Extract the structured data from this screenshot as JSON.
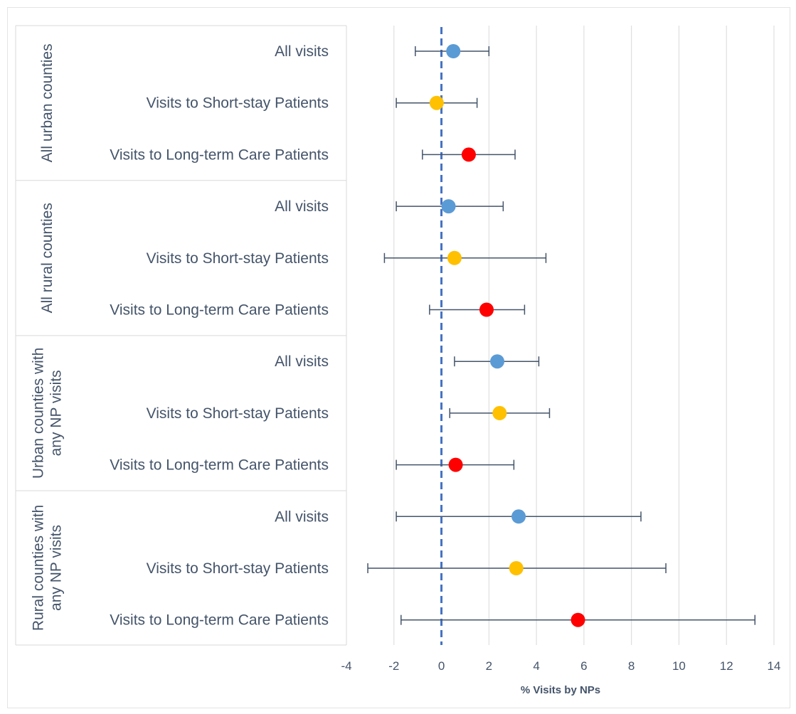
{
  "chart_data": {
    "type": "scatter",
    "subtype": "forest-plot",
    "title": "",
    "xlabel": "% Visits by NPs",
    "ylabel": "",
    "xlim": [
      -4,
      14
    ],
    "x_ticks": [
      -4,
      -2,
      0,
      2,
      4,
      6,
      8,
      10,
      12,
      14
    ],
    "x_tick_labels": [
      "-4",
      "-2",
      "0",
      "2",
      "4",
      "6",
      "8",
      "10",
      "12",
      "14"
    ],
    "grid": "vertical",
    "reference_line": {
      "x": 0,
      "style": "dashed",
      "color": "#4472c4"
    },
    "colors": {
      "All visits": "#5b9bd5",
      "Visits to Short-stay Patients": "#ffc000",
      "Visits to Long-term Care Patients": "#ff0000",
      "error_bar": "#44546a",
      "text": "#44546a"
    },
    "groups": [
      {
        "name_lines": [
          "All urban counties"
        ],
        "rows": [
          {
            "label": "All visits",
            "estimate": 0.5,
            "lower": -1.1,
            "upper": 2.0
          },
          {
            "label": "Visits to Short-stay Patients",
            "estimate": -0.2,
            "upper": 1.5,
            "lower": -1.9
          },
          {
            "label": "Visits to Long-term Care Patients",
            "estimate": 1.15,
            "lower": -0.8,
            "upper": 3.1
          }
        ]
      },
      {
        "name_lines": [
          "All rural counties"
        ],
        "rows": [
          {
            "label": "All visits",
            "estimate": 0.3,
            "lower": -1.9,
            "upper": 2.6
          },
          {
            "label": "Visits to Short-stay Patients",
            "estimate": 0.55,
            "lower": -2.4,
            "upper": 4.4
          },
          {
            "label": "Visits to Long-term Care Patients",
            "estimate": 1.9,
            "lower": -0.5,
            "upper": 3.5
          }
        ]
      },
      {
        "name_lines": [
          "Urban counties with",
          "any NP visits"
        ],
        "rows": [
          {
            "label": "All visits",
            "estimate": 2.35,
            "lower": 0.55,
            "upper": 4.1
          },
          {
            "label": "Visits to Short-stay Patients",
            "estimate": 2.45,
            "lower": 0.35,
            "upper": 4.55
          },
          {
            "label": "Visits to Long-term Care Patients",
            "estimate": 0.6,
            "lower": -1.9,
            "upper": 3.05
          }
        ]
      },
      {
        "name_lines": [
          "Rural counties with",
          "any NP visits"
        ],
        "rows": [
          {
            "label": "All visits",
            "estimate": 3.25,
            "lower": -1.9,
            "upper": 8.4
          },
          {
            "label": "Visits to Short-stay Patients",
            "estimate": 3.15,
            "lower": -3.1,
            "upper": 9.45
          },
          {
            "label": "Visits to Long-term Care Patients",
            "estimate": 5.75,
            "lower": -1.7,
            "upper": 13.2
          }
        ]
      }
    ]
  }
}
